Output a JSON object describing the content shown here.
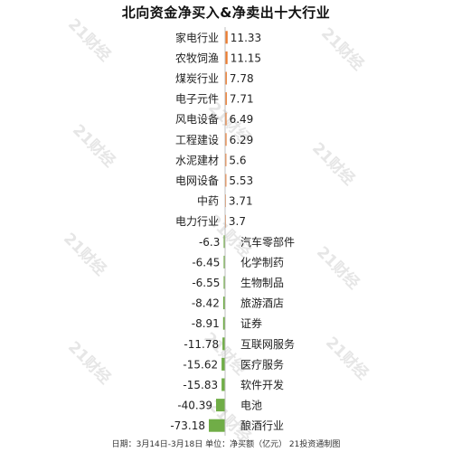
{
  "chart_data": {
    "type": "bar",
    "orientation": "horizontal",
    "title": "北向资金净买入&净卖出十大行业",
    "categories": [
      "家电行业",
      "农牧饲渔",
      "煤炭行业",
      "电子元件",
      "风电设备",
      "工程建设",
      "水泥建材",
      "电网设备",
      "中药",
      "电力行业",
      "汽车零部件",
      "化学制药",
      "生物制品",
      "旅游酒店",
      "证券",
      "互联网服务",
      "医疗服务",
      "软件开发",
      "电池",
      "酿酒行业"
    ],
    "values": [
      11.33,
      11.15,
      7.78,
      7.71,
      6.49,
      6.29,
      5.6,
      5.53,
      3.71,
      3.7,
      -6.3,
      -6.45,
      -6.55,
      -8.42,
      -8.91,
      -11.78,
      -15.62,
      -15.83,
      -40.39,
      -73.18
    ],
    "value_labels": [
      "11.33",
      "11.15",
      "7.78",
      "7.71",
      "6.49",
      "6.29",
      "5.6",
      "5.53",
      "3.71",
      "3.7",
      "-6.3",
      "-6.45",
      "-6.55",
      "-8.42",
      "-8.91",
      "-11.78",
      "-15.62",
      "-15.83",
      "-40.39",
      "-73.18"
    ],
    "positive_color": "#ed7d31",
    "negative_color": "#70ad47",
    "grid": false,
    "legend": "none"
  },
  "footnote": "日期：3月14日-3月18日 单位：净买额（亿元） 21投资通制图",
  "watermark": "21财经"
}
